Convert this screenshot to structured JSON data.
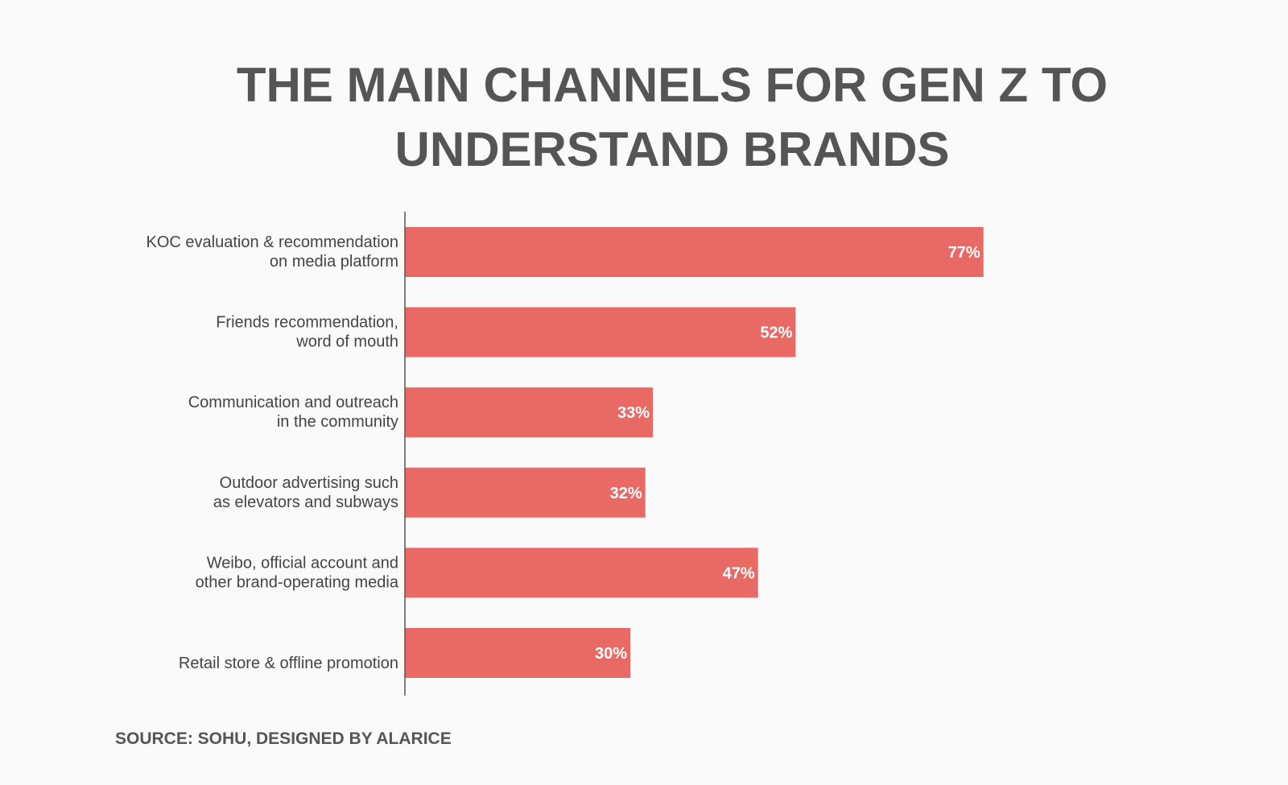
{
  "title_lines": [
    "THE MAIN CHANNELS FOR GEN Z TO",
    "UNDERSTAND BRANDS"
  ],
  "source": "SOURCE: SOHU, DESIGNED BY ALARICE",
  "colors": {
    "bar": "#e96a64",
    "axis": "#555555",
    "text": "#555555",
    "background": "#fafafa"
  },
  "chart_data": {
    "type": "bar",
    "orientation": "horizontal",
    "title": "THE MAIN CHANNELS FOR GEN Z TO UNDERSTAND BRANDS",
    "categories": [
      [
        "KOC evaluation & recommendation",
        "on media platform"
      ],
      [
        "Friends recommendation,",
        "word of mouth"
      ],
      [
        "Communication and outreach",
        "in the community"
      ],
      [
        "Outdoor advertising such",
        "as elevators and subways"
      ],
      [
        "Weibo, official account and",
        "other brand-operating media"
      ],
      [
        "Retail store & offline promotion"
      ]
    ],
    "values": [
      77,
      52,
      33,
      32,
      47,
      30
    ],
    "value_labels": [
      "77%",
      "52%",
      "33%",
      "32%",
      "47%",
      "30%"
    ],
    "unit": "%",
    "xlim": [
      0,
      100
    ],
    "grid": false,
    "legend": "none"
  }
}
